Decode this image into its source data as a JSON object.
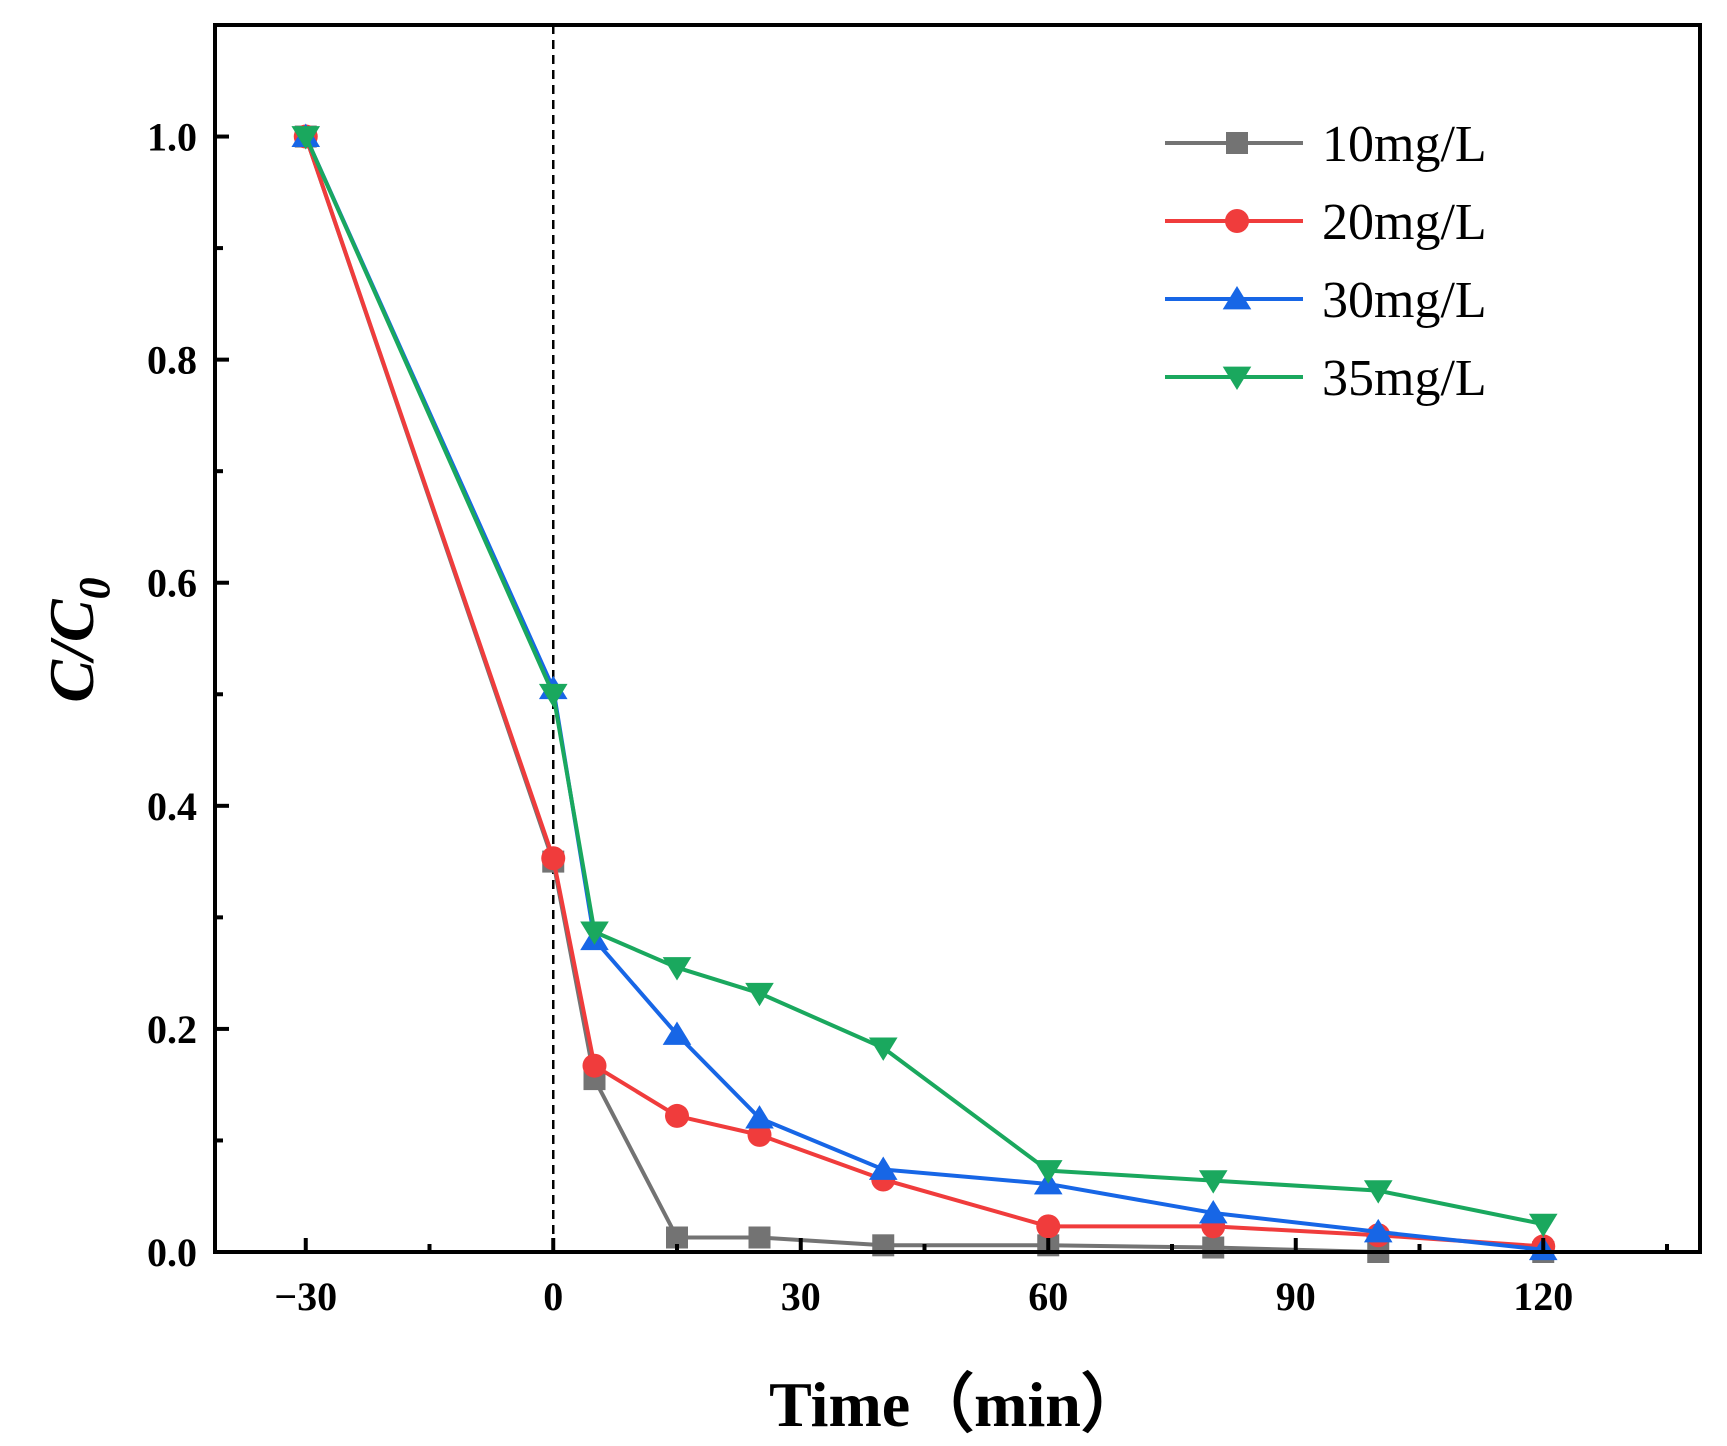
{
  "chart_data": {
    "type": "line",
    "title": "",
    "xlabel": "Time（min）",
    "ylabel": "C/C",
    "ylabel_subscript": "0",
    "xlim": [
      -41,
      139
    ],
    "ylim": [
      0,
      1.1
    ],
    "xticks": [
      -30,
      0,
      30,
      60,
      90,
      120
    ],
    "xtick_labels": [
      "−30",
      "0",
      "30",
      "60",
      "90",
      "120"
    ],
    "yticks": [
      0.0,
      0.2,
      0.4,
      0.6,
      0.8,
      1.0
    ],
    "ytick_labels": [
      "0.0",
      "0.2",
      "0.4",
      "0.6",
      "0.8",
      "1.0"
    ],
    "grid": false,
    "legend_position": "top-right",
    "annotations": [
      {
        "type": "vertical-dashed-line",
        "x": 0
      }
    ],
    "x": [
      -30,
      0,
      5,
      15,
      25,
      40,
      60,
      80,
      100,
      120
    ],
    "series": [
      {
        "name": "10mg/L",
        "color": "#737373",
        "marker": "square",
        "values": [
          1.0,
          0.35,
          0.155,
          0.013,
          0.013,
          0.006,
          0.006,
          0.004,
          0.0,
          0.0
        ]
      },
      {
        "name": "20mg/L",
        "color": "#f03c3c",
        "marker": "circle",
        "values": [
          1.0,
          0.353,
          0.167,
          0.122,
          0.105,
          0.065,
          0.023,
          0.023,
          0.015,
          0.005
        ]
      },
      {
        "name": "30mg/L",
        "color": "#1766e6",
        "marker": "triangle-up",
        "values": [
          1.0,
          0.505,
          0.28,
          0.195,
          0.12,
          0.074,
          0.061,
          0.035,
          0.018,
          0.002
        ]
      },
      {
        "name": "35mg/L",
        "color": "#1aa85e",
        "marker": "triangle-down",
        "values": [
          1.0,
          0.5,
          0.287,
          0.255,
          0.232,
          0.183,
          0.073,
          0.064,
          0.055,
          0.025
        ]
      }
    ]
  }
}
